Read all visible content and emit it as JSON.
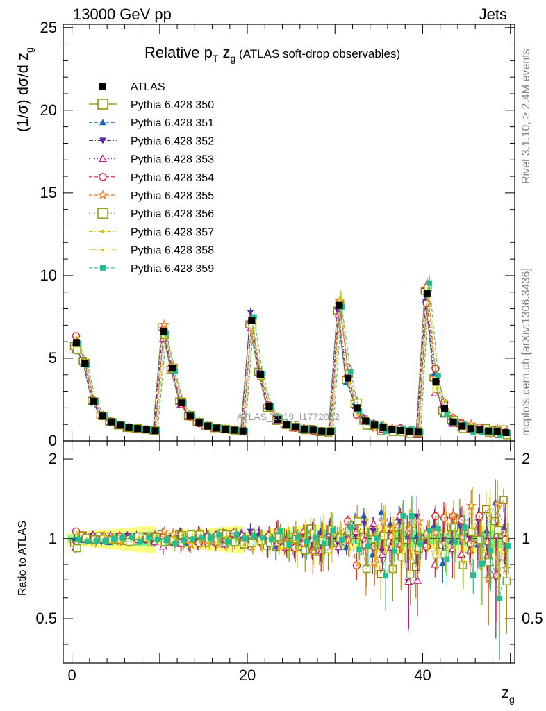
{
  "header": {
    "left": "13000 GeV pp",
    "right": "Jets"
  },
  "side_labels": {
    "rivet": "Rivet 3.1.10, ≥ 2.4M events",
    "mcplots": "mcplots.cern.ch [arXiv:1306.3436]"
  },
  "watermark": "ATLAS_2019_I1772062",
  "colors": {
    "data": "#000000",
    "band_outer": "#ffff80",
    "band_inner": "#80ff80"
  },
  "chart_data": [
    {
      "type": "scatter",
      "panel": "main",
      "title_parts": [
        "Relative p",
        "T",
        " z",
        "g",
        " (ATLAS soft-drop observables)"
      ],
      "ylabel_parts": [
        "(1/σ) dσ/d z",
        "g"
      ],
      "xlim": [
        -1,
        50.5
      ],
      "ylim": [
        0,
        25.2
      ],
      "yticks": [
        0,
        5,
        10,
        15,
        20,
        25
      ],
      "x_centers_note": "bins 0..49",
      "data": {
        "name": "ATLAS",
        "values": [
          5.95,
          4.7,
          2.4,
          1.5,
          1.15,
          0.95,
          0.8,
          0.75,
          0.68,
          0.62,
          6.6,
          4.4,
          2.3,
          1.5,
          1.1,
          0.9,
          0.78,
          0.7,
          0.65,
          0.6,
          7.3,
          4.0,
          2.1,
          1.3,
          1.0,
          0.85,
          0.72,
          0.66,
          0.6,
          0.55,
          8.2,
          3.8,
          2.0,
          1.2,
          0.95,
          0.8,
          0.7,
          0.63,
          0.58,
          0.53,
          8.9,
          3.6,
          1.95,
          1.15,
          0.9,
          0.75,
          0.67,
          0.6,
          0.55,
          0.5
        ]
      },
      "series": [
        {
          "name": "Pythia 6.428 350",
          "color": "#8b8b00",
          "marker": "square-open",
          "dash": ""
        },
        {
          "name": "Pythia 6.428 351",
          "color": "#1565c0",
          "marker": "triangle-up",
          "dash": "5,3"
        },
        {
          "name": "Pythia 6.428 352",
          "color": "#5b2aa6",
          "marker": "triangle-down",
          "dash": "6,3,1,3"
        },
        {
          "name": "Pythia 6.428 353",
          "color": "#c71585",
          "marker": "triangle-open",
          "dash": "1,3"
        },
        {
          "name": "Pythia 6.428 354",
          "color": "#e0203a",
          "marker": "circle-open",
          "dash": "5,3"
        },
        {
          "name": "Pythia 6.428 355",
          "color": "#f07820",
          "marker": "star-open",
          "dash": "5,3"
        },
        {
          "name": "Pythia 6.428 356",
          "color": "#8fa010",
          "marker": "square-open",
          "dash": "1,3"
        },
        {
          "name": "Pythia 6.428 357",
          "color": "#e0c000",
          "marker": "dot",
          "dash": "6,3,1,3"
        },
        {
          "name": "Pythia 6.428 358",
          "color": "#c8d400",
          "marker": "dot-small",
          "dash": "1,2"
        },
        {
          "name": "Pythia 6.428 359",
          "color": "#20c090",
          "marker": "square",
          "dash": "5,3"
        }
      ]
    },
    {
      "type": "scatter",
      "panel": "ratio",
      "ylabel": "Ratio to ATLAS",
      "xlabel_parts": [
        "z",
        "g"
      ],
      "xlim": [
        -1,
        50.5
      ],
      "ylim": [
        0.34,
        2.34
      ],
      "yticks": [
        0.5,
        1,
        2
      ],
      "xticks": [
        0,
        20,
        40
      ]
    }
  ]
}
